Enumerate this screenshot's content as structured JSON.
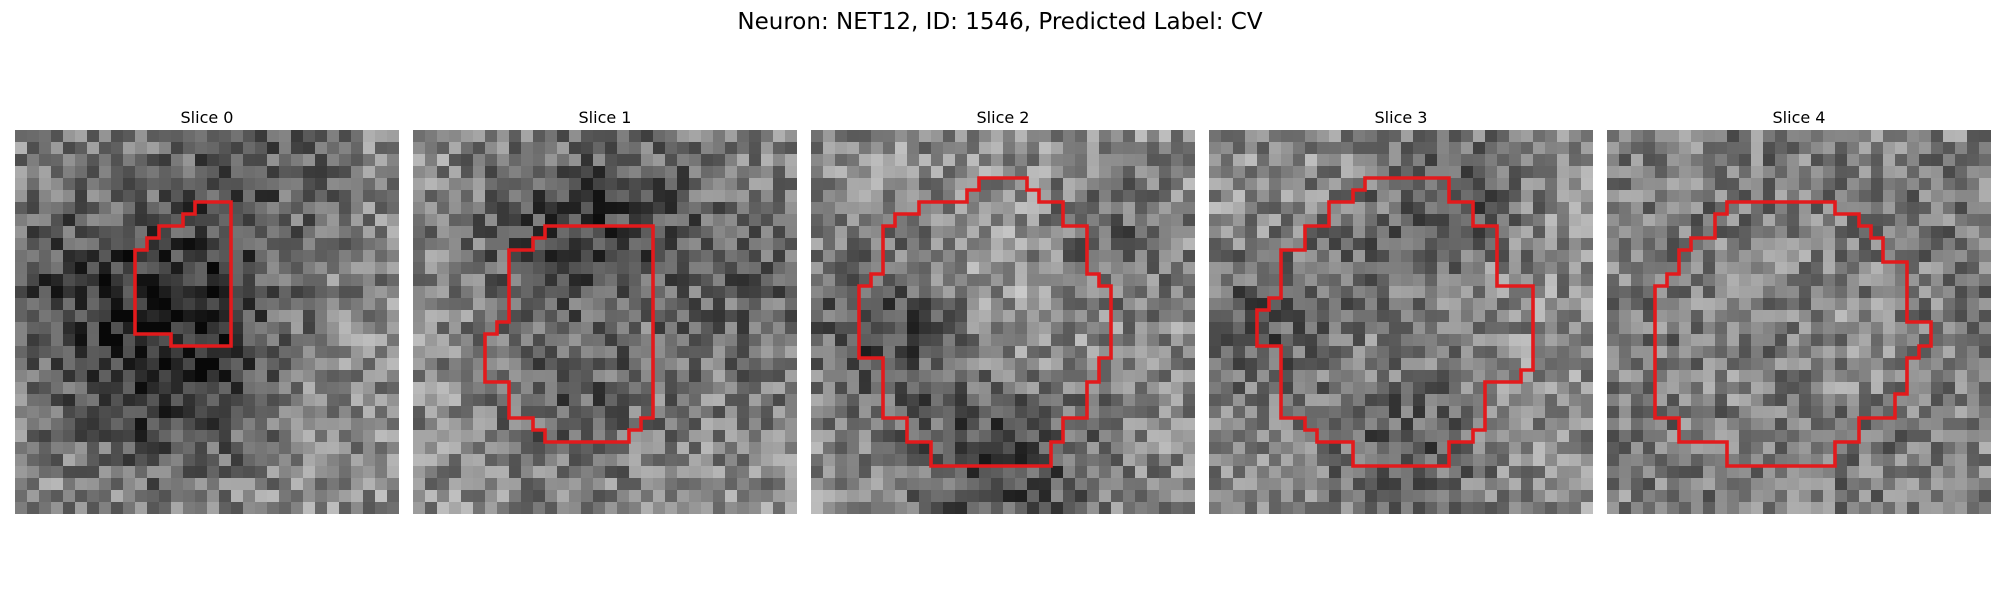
{
  "figure": {
    "title": "Neuron: NET12, ID: 1546, Predicted Label: CV"
  },
  "panels": [
    {
      "title": "Slice 0"
    },
    {
      "title": "Slice 1"
    },
    {
      "title": "Slice 2"
    },
    {
      "title": "Slice 3"
    },
    {
      "title": "Slice 4"
    }
  ],
  "style": {
    "contour_color": "#e31a1c",
    "image_colormap": "grayscale"
  }
}
